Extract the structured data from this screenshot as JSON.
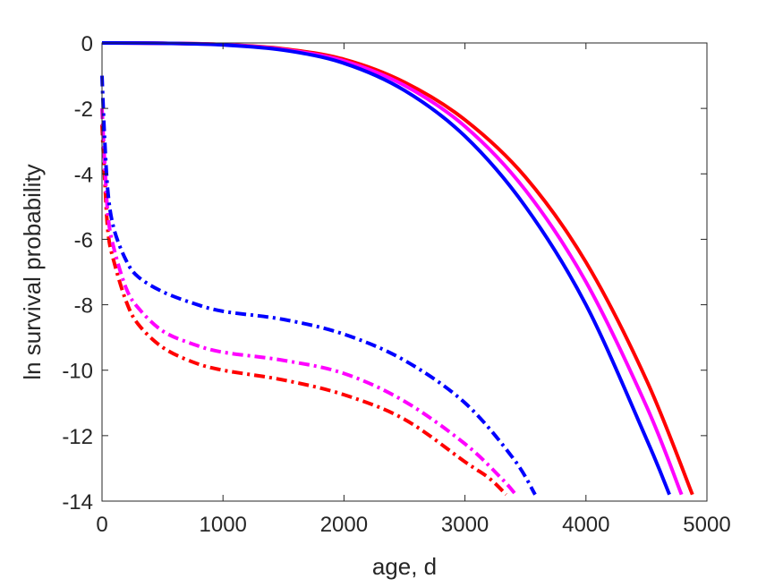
{
  "chart_data": {
    "type": "line",
    "title": "",
    "xlabel": "age, d",
    "ylabel": "ln survival probability",
    "xlim": [
      0,
      5000
    ],
    "ylim": [
      -14,
      0
    ],
    "xticks": [
      0,
      1000,
      2000,
      3000,
      4000,
      5000
    ],
    "yticks": [
      0,
      -2,
      -4,
      -6,
      -8,
      -10,
      -12,
      -14
    ],
    "xtick_labels": [
      "0",
      "1000",
      "2000",
      "3000",
      "4000",
      "5000"
    ],
    "ytick_labels": [
      "0",
      "-2",
      "-4",
      "-6",
      "-8",
      "-10",
      "-12",
      "-14"
    ],
    "grid": false,
    "box": true,
    "legend": null,
    "series": [
      {
        "color": "#ff0000",
        "style": "solid",
        "x": [
          0,
          500,
          1000,
          1500,
          2000,
          2500,
          3000,
          3500,
          4000,
          4500,
          4880
        ],
        "y": [
          0,
          -0.01,
          -0.05,
          -0.18,
          -0.5,
          -1.2,
          -2.35,
          -4.1,
          -6.7,
          -10.3,
          -13.8
        ]
      },
      {
        "color": "#ff00ff",
        "style": "solid",
        "x": [
          0,
          500,
          1000,
          1500,
          2000,
          2500,
          3000,
          3500,
          4000,
          4500,
          4790
        ],
        "y": [
          0,
          -0.01,
          -0.05,
          -0.2,
          -0.55,
          -1.3,
          -2.55,
          -4.5,
          -7.3,
          -11.1,
          -13.8
        ]
      },
      {
        "color": "#0000ff",
        "style": "solid",
        "x": [
          0,
          500,
          1000,
          1500,
          2000,
          2500,
          3000,
          3500,
          4000,
          4500,
          4690
        ],
        "y": [
          0,
          -0.01,
          -0.06,
          -0.22,
          -0.62,
          -1.45,
          -2.85,
          -5.0,
          -8.0,
          -12.1,
          -13.8
        ]
      },
      {
        "color": "#ff0000",
        "style": "dashdot",
        "x": [
          0,
          20,
          50,
          100,
          200,
          300,
          500,
          750,
          1000,
          1500,
          2000,
          2500,
          3000,
          3200,
          3340
        ],
        "y": [
          -2.5,
          -4.0,
          -5.8,
          -6.7,
          -7.9,
          -8.6,
          -9.3,
          -9.75,
          -10.0,
          -10.3,
          -10.75,
          -11.5,
          -12.8,
          -13.3,
          -13.8
        ]
      },
      {
        "color": "#ff00ff",
        "style": "dashdot",
        "x": [
          0,
          20,
          50,
          100,
          200,
          300,
          500,
          750,
          1000,
          1500,
          2000,
          2500,
          3000,
          3300,
          3420
        ],
        "y": [
          -2.0,
          -3.5,
          -5.3,
          -6.3,
          -7.5,
          -8.1,
          -8.8,
          -9.2,
          -9.45,
          -9.7,
          -10.1,
          -10.95,
          -12.25,
          -13.3,
          -13.8
        ]
      },
      {
        "color": "#0000ff",
        "style": "dashdot",
        "x": [
          0,
          20,
          50,
          100,
          200,
          300,
          500,
          750,
          1000,
          1500,
          2000,
          2500,
          3000,
          3400,
          3580
        ],
        "y": [
          -1.0,
          -2.8,
          -4.6,
          -5.7,
          -6.65,
          -7.15,
          -7.6,
          -7.95,
          -8.2,
          -8.45,
          -8.9,
          -9.7,
          -11.0,
          -12.7,
          -13.8
        ]
      }
    ]
  }
}
